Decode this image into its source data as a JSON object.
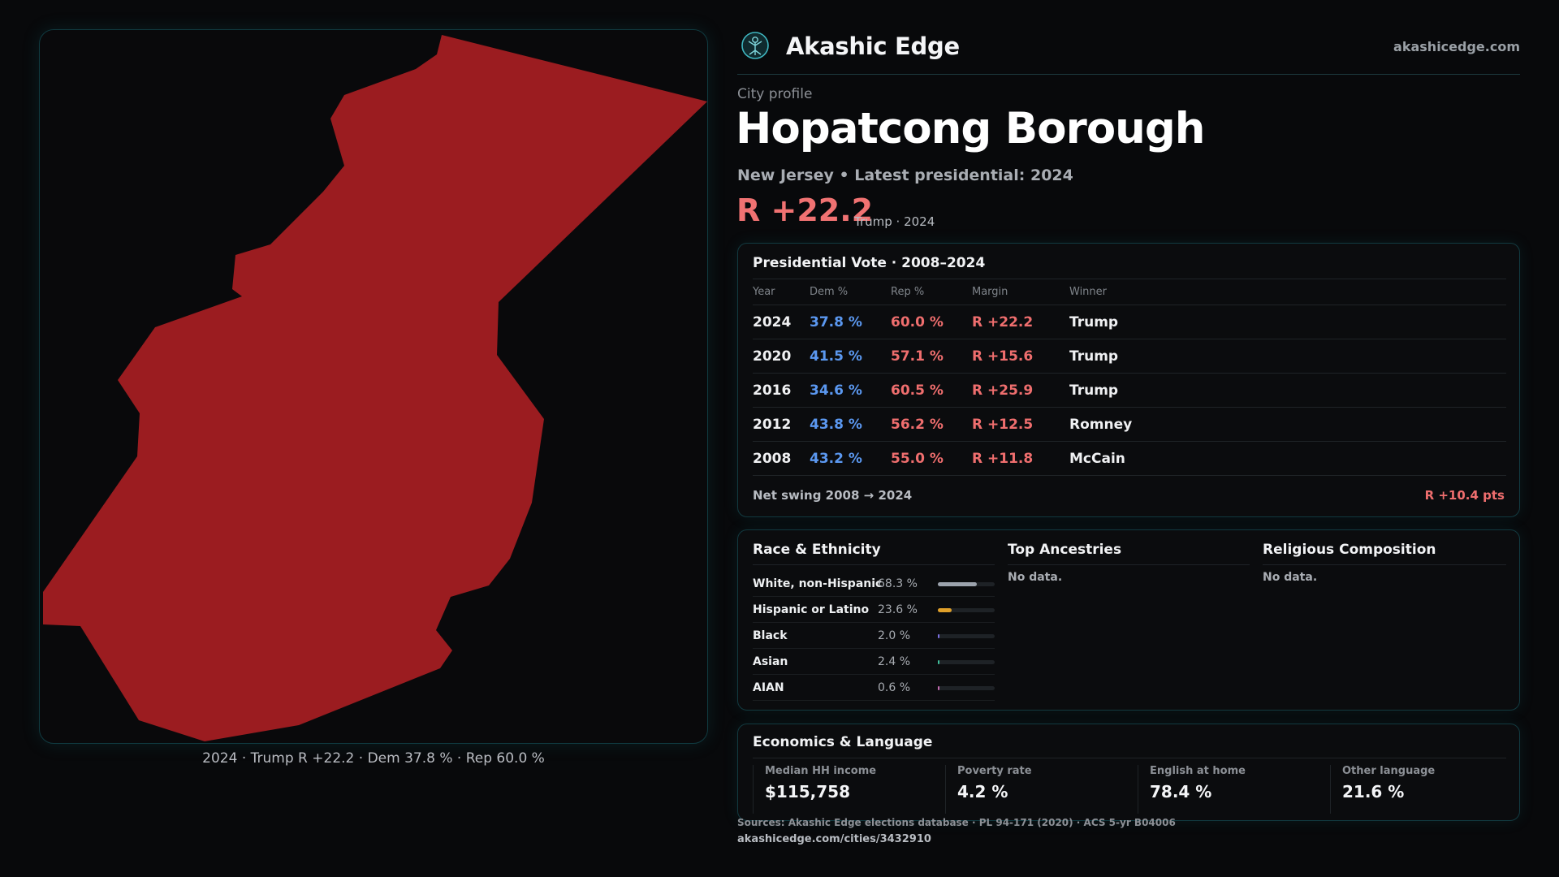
{
  "brand": {
    "name": "Akashic Edge",
    "url": "akashicedge.com"
  },
  "profile": {
    "kicker": "City profile",
    "city": "Hopatcong Borough",
    "subline": "New Jersey • Latest presidential: 2024",
    "margin": "R +22.2",
    "margin_note": "Trump · 2024"
  },
  "map": {
    "caption": "2024 · Trump R +22.2 · Dem 37.8 % · Rep 60.0 %",
    "fill_color": "#9b1c20"
  },
  "vote": {
    "title": "Presidential Vote · 2008–2024",
    "headers": {
      "year": "Year",
      "dem": "Dem %",
      "rep": "Rep %",
      "margin": "Margin",
      "winner": "Winner"
    },
    "rows": [
      {
        "year": "2024",
        "dem": "37.8 %",
        "rep": "60.0 %",
        "margin": "R +22.2",
        "winner": "Trump"
      },
      {
        "year": "2020",
        "dem": "41.5 %",
        "rep": "57.1 %",
        "margin": "R +15.6",
        "winner": "Trump"
      },
      {
        "year": "2016",
        "dem": "34.6 %",
        "rep": "60.5 %",
        "margin": "R +25.9",
        "winner": "Trump"
      },
      {
        "year": "2012",
        "dem": "43.8 %",
        "rep": "56.2 %",
        "margin": "R +12.5",
        "winner": "Romney"
      },
      {
        "year": "2008",
        "dem": "43.2 %",
        "rep": "55.0 %",
        "margin": "R +11.8",
        "winner": "McCain"
      }
    ],
    "swing_label": "Net swing 2008 → 2024",
    "swing_value": "R +10.4 pts"
  },
  "race": {
    "title": "Race & Ethnicity",
    "items": [
      {
        "label": "White, non-Hispanic",
        "pct": "68.3 %",
        "value": 68.3,
        "color": "#9ca3ad"
      },
      {
        "label": "Hispanic or Latino",
        "pct": "23.6 %",
        "value": 23.6,
        "color": "#e0a02a"
      },
      {
        "label": "Black",
        "pct": "2.0 %",
        "value": 2.0,
        "color": "#7a6fe0"
      },
      {
        "label": "Asian",
        "pct": "2.4 %",
        "value": 2.4,
        "color": "#3fbf9a"
      },
      {
        "label": "AIAN",
        "pct": "0.6 %",
        "value": 0.6,
        "color": "#c46ab0"
      }
    ]
  },
  "ancestries": {
    "title": "Top Ancestries",
    "empty": "No data."
  },
  "religion": {
    "title": "Religious Composition",
    "empty": "No data."
  },
  "economics": {
    "title": "Economics & Language",
    "stats": [
      {
        "label": "Median HH income",
        "value": "$115,758"
      },
      {
        "label": "Poverty rate",
        "value": "4.2 %"
      },
      {
        "label": "English at home",
        "value": "78.4 %"
      },
      {
        "label": "Other language",
        "value": "21.6 %"
      }
    ]
  },
  "footer": {
    "sources": "Sources: Akashic Edge elections database · PL 94-171 (2020) · ACS 5-yr B04006",
    "url": "akashicedge.com/cities/3432910"
  }
}
